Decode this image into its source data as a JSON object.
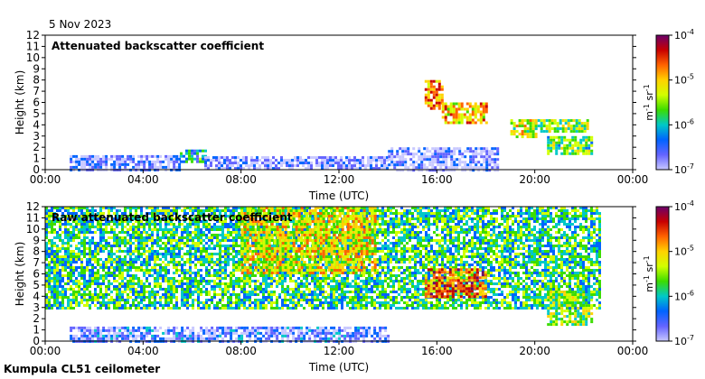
{
  "header": {
    "date": "5 Nov 2023"
  },
  "footer": {
    "instrument": "Kumpula CL51 ceilometer"
  },
  "colorbar": {
    "colors": [
      "#6b006b",
      "#c80000",
      "#ff6400",
      "#ffd200",
      "#d2ff00",
      "#3cdc00",
      "#00c8c8",
      "#0064ff",
      "#6464ff",
      "#c8c8ff"
    ],
    "ticks": [
      "10",
      "10",
      "10",
      "10"
    ],
    "exponents": [
      "-4",
      "-5",
      "-6",
      "-7"
    ],
    "label_base": "m",
    "label_exp1": "-1",
    "label_mid": " sr",
    "label_exp2": "-1"
  },
  "chart_data": [
    {
      "type": "heatmap",
      "title": "Attenuated backscatter coefficient",
      "xlabel": "Time (UTC)",
      "ylabel": "Height (km)",
      "xticks": [
        "00:00",
        "04:00",
        "08:00",
        "12:00",
        "16:00",
        "20:00",
        "00:00"
      ],
      "xlim": [
        0,
        24
      ],
      "yticks": [
        "0",
        "1",
        "2",
        "3",
        "4",
        "5",
        "6",
        "7",
        "8",
        "9",
        "10",
        "11",
        "12"
      ],
      "ylim": [
        0,
        12
      ],
      "colorscale": "log",
      "crange": [
        1e-07,
        0.0001
      ],
      "features": [
        {
          "t0": 1.0,
          "t1": 5.5,
          "h0": 0.0,
          "h1": 1.3,
          "level": 0.12
        },
        {
          "t0": 5.5,
          "t1": 6.5,
          "h0": 0.6,
          "h1": 1.8,
          "level": 0.35
        },
        {
          "t0": 6.5,
          "t1": 14.0,
          "h0": 0.0,
          "h1": 1.2,
          "level": 0.1
        },
        {
          "t0": 14.0,
          "t1": 18.5,
          "h0": 0.0,
          "h1": 2.0,
          "level": 0.08
        },
        {
          "t0": 15.5,
          "t1": 16.2,
          "h0": 5.5,
          "h1": 8.0,
          "level": 0.7
        },
        {
          "t0": 16.2,
          "t1": 18.0,
          "h0": 4.2,
          "h1": 6.0,
          "level": 0.65
        },
        {
          "t0": 19.0,
          "t1": 20.0,
          "h0": 3.0,
          "h1": 4.5,
          "level": 0.55
        },
        {
          "t0": 20.0,
          "t1": 22.2,
          "h0": 3.5,
          "h1": 4.5,
          "level": 0.5
        },
        {
          "t0": 20.5,
          "t1": 22.3,
          "h0": 1.5,
          "h1": 3.0,
          "level": 0.45
        }
      ]
    },
    {
      "type": "heatmap",
      "title": "Raw attenuated backscatter coefficient",
      "xlabel": "Time (UTC)",
      "ylabel": "Height (km)",
      "xticks": [
        "00:00",
        "04:00",
        "08:00",
        "12:00",
        "16:00",
        "20:00",
        "00:00"
      ],
      "xlim": [
        0,
        24
      ],
      "yticks": [
        "0",
        "1",
        "2",
        "3",
        "4",
        "5",
        "6",
        "7",
        "8",
        "9",
        "10",
        "11",
        "12"
      ],
      "ylim": [
        0,
        12
      ],
      "colorscale": "log",
      "crange": [
        1e-07,
        0.0001
      ],
      "features": [
        {
          "t0": 0.0,
          "t1": 22.6,
          "h0": 3.0,
          "h1": 12.0,
          "level": 0.4
        },
        {
          "t0": 8.0,
          "t1": 13.5,
          "h0": 6.0,
          "h1": 12.0,
          "level": 0.6
        },
        {
          "t0": 1.0,
          "t1": 14.0,
          "h0": 0.0,
          "h1": 1.3,
          "level": 0.15
        },
        {
          "t0": 15.5,
          "t1": 18.0,
          "h0": 4.0,
          "h1": 6.5,
          "level": 0.75
        },
        {
          "t0": 20.5,
          "t1": 22.3,
          "h0": 1.5,
          "h1": 4.5,
          "level": 0.5
        }
      ]
    }
  ]
}
